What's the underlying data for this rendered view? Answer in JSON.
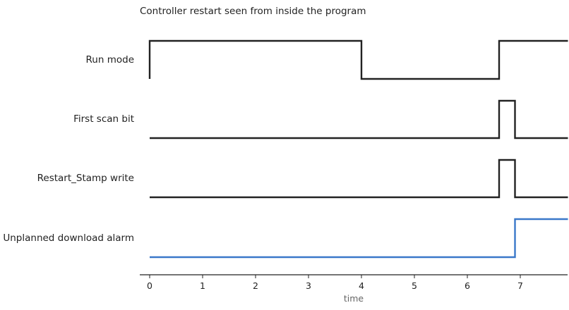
{
  "chart_data": {
    "type": "line",
    "subtype": "digital-timing-diagram",
    "title": "Controller restart seen from inside the program",
    "xlabel": "time",
    "ylabel": "",
    "xlim": [
      -0.2,
      7.9
    ],
    "xticks": [
      0,
      1,
      2,
      3,
      4,
      5,
      6,
      7
    ],
    "grid": false,
    "legend": "none",
    "series": [
      {
        "name": "Run mode",
        "color": "#222222",
        "points": [
          [
            0,
            0
          ],
          [
            0,
            1
          ],
          [
            4.0,
            1
          ],
          [
            4.0,
            0
          ],
          [
            6.6,
            0
          ],
          [
            6.6,
            1
          ],
          [
            7.9,
            1
          ]
        ]
      },
      {
        "name": "First scan bit",
        "color": "#222222",
        "points": [
          [
            0,
            0
          ],
          [
            6.6,
            0
          ],
          [
            6.6,
            1
          ],
          [
            6.9,
            1
          ],
          [
            6.9,
            0
          ],
          [
            7.9,
            0
          ]
        ]
      },
      {
        "name": "Restart_Stamp write",
        "color": "#222222",
        "points": [
          [
            0,
            0
          ],
          [
            6.6,
            0
          ],
          [
            6.6,
            1
          ],
          [
            6.9,
            1
          ],
          [
            6.9,
            0
          ],
          [
            7.9,
            0
          ]
        ]
      },
      {
        "name": "Unplanned download alarm",
        "color": "#3a78c9",
        "points": [
          [
            0,
            0
          ],
          [
            6.9,
            0
          ],
          [
            6.9,
            1
          ],
          [
            7.9,
            1
          ]
        ]
      }
    ]
  }
}
